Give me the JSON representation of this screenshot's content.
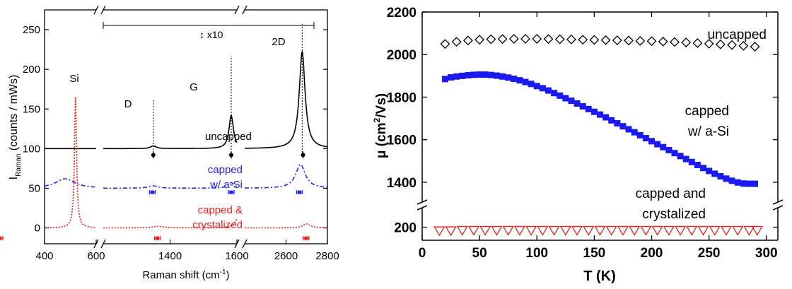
{
  "chart_data": [
    {
      "type": "line",
      "title": "",
      "xlabel": "Raman shift (cm-1)",
      "xlabel_main": "Raman shift (cm",
      "xlabel_sup": "-1",
      "xlabel_end": ")",
      "ylabel_prefix": "I",
      "ylabel_sub": "Raman",
      "ylabel_rest": " (counts / mWs)",
      "x_segments": [
        [
          400,
          600
        ],
        [
          1200,
          1600
        ],
        [
          2400,
          2800
        ]
      ],
      "xticks": [
        400,
        600,
        1400,
        1600,
        2600,
        2800
      ],
      "xtick_labels": [
        "400",
        "600",
        "1400",
        "1600",
        "2600",
        "2800"
      ],
      "ylim": [
        -20,
        275
      ],
      "yticks": [
        0,
        50,
        100,
        150,
        200,
        250
      ],
      "scale_note": "↕ x10",
      "peak_labels": [
        "Si",
        "D",
        "G",
        "2D"
      ],
      "series": [
        {
          "name": "uncapped",
          "color": "#000000",
          "offset": 100,
          "label_lines": [
            "uncapped"
          ],
          "si_peak": null,
          "peaks": [
            {
              "pos": 1350,
              "h": 3.5,
              "w": 10
            },
            {
              "pos": 1583,
              "h": 42,
              "w": 8
            },
            {
              "pos": 2678,
              "h": 122,
              "w": 17
            }
          ]
        },
        {
          "name": "capped w/ a-Si",
          "color": "#2323ee",
          "offset": 50,
          "label_lines": [
            "capped",
            "w/ a-Si"
          ],
          "si_peak": null,
          "peaks": [
            {
              "pos": 480,
              "h": 12,
              "w": 45
            },
            {
              "pos": 1350,
              "h": 3,
              "w": 18
            },
            {
              "pos": 1583,
              "h": 7,
              "w": 12
            },
            {
              "pos": 2670,
              "h": 30,
              "w": 28
            }
          ]
        },
        {
          "name": "capped & crystalized",
          "color": "#ee1c1c",
          "offset": 0,
          "label_lines": [
            "capped &",
            "crystalized"
          ],
          "si_peak": {
            "pos": 520,
            "h": 165,
            "w": 5
          },
          "peaks": [
            {
              "pos": 1365,
              "h": 2,
              "w": 20
            },
            {
              "pos": 1603,
              "h": 13,
              "w": 10
            },
            {
              "pos": 2700,
              "h": 5,
              "w": 22
            }
          ]
        }
      ],
      "markers": [
        {
          "series": "uncapped",
          "positions": [
            1350,
            1583,
            2682
          ],
          "y": 92
        },
        {
          "series": "capped w/ a-Si",
          "positions": [
            1347,
            1583,
            2665
          ],
          "y": 45
        },
        {
          "series": "capped & crystalized",
          "positions": [
            1362,
            1605,
            2697
          ],
          "y": -13
        }
      ]
    },
    {
      "type": "scatter",
      "title": "",
      "xlabel": "T (K)",
      "ylabel_main": "μ (cm",
      "ylabel_sup": "2",
      "ylabel_end": "/Vs)",
      "xlim": [
        0,
        310
      ],
      "xticks": [
        0,
        50,
        100,
        150,
        200,
        250,
        300
      ],
      "ylim_upper": [
        1340,
        2200
      ],
      "yticks_upper": [
        1400,
        1600,
        1800,
        2000,
        2200
      ],
      "ylim_lower": [
        170,
        235
      ],
      "yticks_lower": [
        200
      ],
      "series": [
        {
          "name": "uncapped",
          "label_lines": [
            "uncapped"
          ],
          "marker": "diamond-open",
          "color": "#000000",
          "x": [
            20,
            30,
            40,
            50,
            60,
            70,
            80,
            90,
            100,
            110,
            120,
            130,
            140,
            150,
            160,
            170,
            180,
            190,
            200,
            210,
            220,
            230,
            240,
            250,
            260,
            270,
            280,
            290
          ],
          "y": [
            2050,
            2060,
            2066,
            2070,
            2072,
            2073,
            2074,
            2074,
            2074,
            2073,
            2072,
            2071,
            2070,
            2069,
            2068,
            2067,
            2066,
            2064,
            2063,
            2061,
            2059,
            2057,
            2054,
            2051,
            2048,
            2045,
            2041,
            2037
          ]
        },
        {
          "name": "capped w/ a-Si",
          "label_lines": [
            "capped",
            "w/ a-Si"
          ],
          "marker": "square-filled",
          "color": "#1a1aee",
          "x": [
            20,
            25,
            30,
            35,
            40,
            45,
            50,
            55,
            60,
            65,
            70,
            75,
            80,
            85,
            90,
            95,
            100,
            105,
            110,
            115,
            120,
            125,
            130,
            135,
            140,
            145,
            150,
            155,
            160,
            165,
            170,
            175,
            180,
            185,
            190,
            195,
            200,
            205,
            210,
            215,
            220,
            225,
            230,
            235,
            240,
            245,
            250,
            255,
            260,
            265,
            270,
            275,
            280,
            285,
            290
          ],
          "y": [
            1885,
            1893,
            1897,
            1900,
            1903,
            1905,
            1906,
            1906,
            1904,
            1901,
            1897,
            1892,
            1886,
            1879,
            1871,
            1862,
            1852,
            1842,
            1831,
            1819,
            1807,
            1795,
            1783,
            1770,
            1757,
            1744,
            1731,
            1718,
            1705,
            1691,
            1677,
            1663,
            1649,
            1635,
            1621,
            1607,
            1593,
            1579,
            1565,
            1551,
            1537,
            1523,
            1509,
            1495,
            1481,
            1467,
            1453,
            1440,
            1428,
            1417,
            1407,
            1399,
            1394,
            1393,
            1393
          ]
        },
        {
          "name": "capped and crystalized",
          "label_lines": [
            "capped and",
            "crystalized"
          ],
          "marker": "triangle-down-open",
          "color": "#ee1c1c",
          "x": [
            15,
            25,
            35,
            45,
            55,
            65,
            75,
            85,
            95,
            105,
            115,
            125,
            135,
            145,
            155,
            165,
            175,
            185,
            195,
            205,
            215,
            225,
            235,
            245,
            255,
            265,
            275,
            285,
            292
          ],
          "y": [
            191,
            191,
            192,
            192,
            192,
            192,
            192,
            192,
            192,
            192,
            192,
            192,
            192,
            192,
            192,
            192,
            192,
            192,
            192,
            192,
            192,
            192,
            192,
            192,
            192,
            192,
            192,
            192,
            192
          ]
        }
      ]
    }
  ]
}
